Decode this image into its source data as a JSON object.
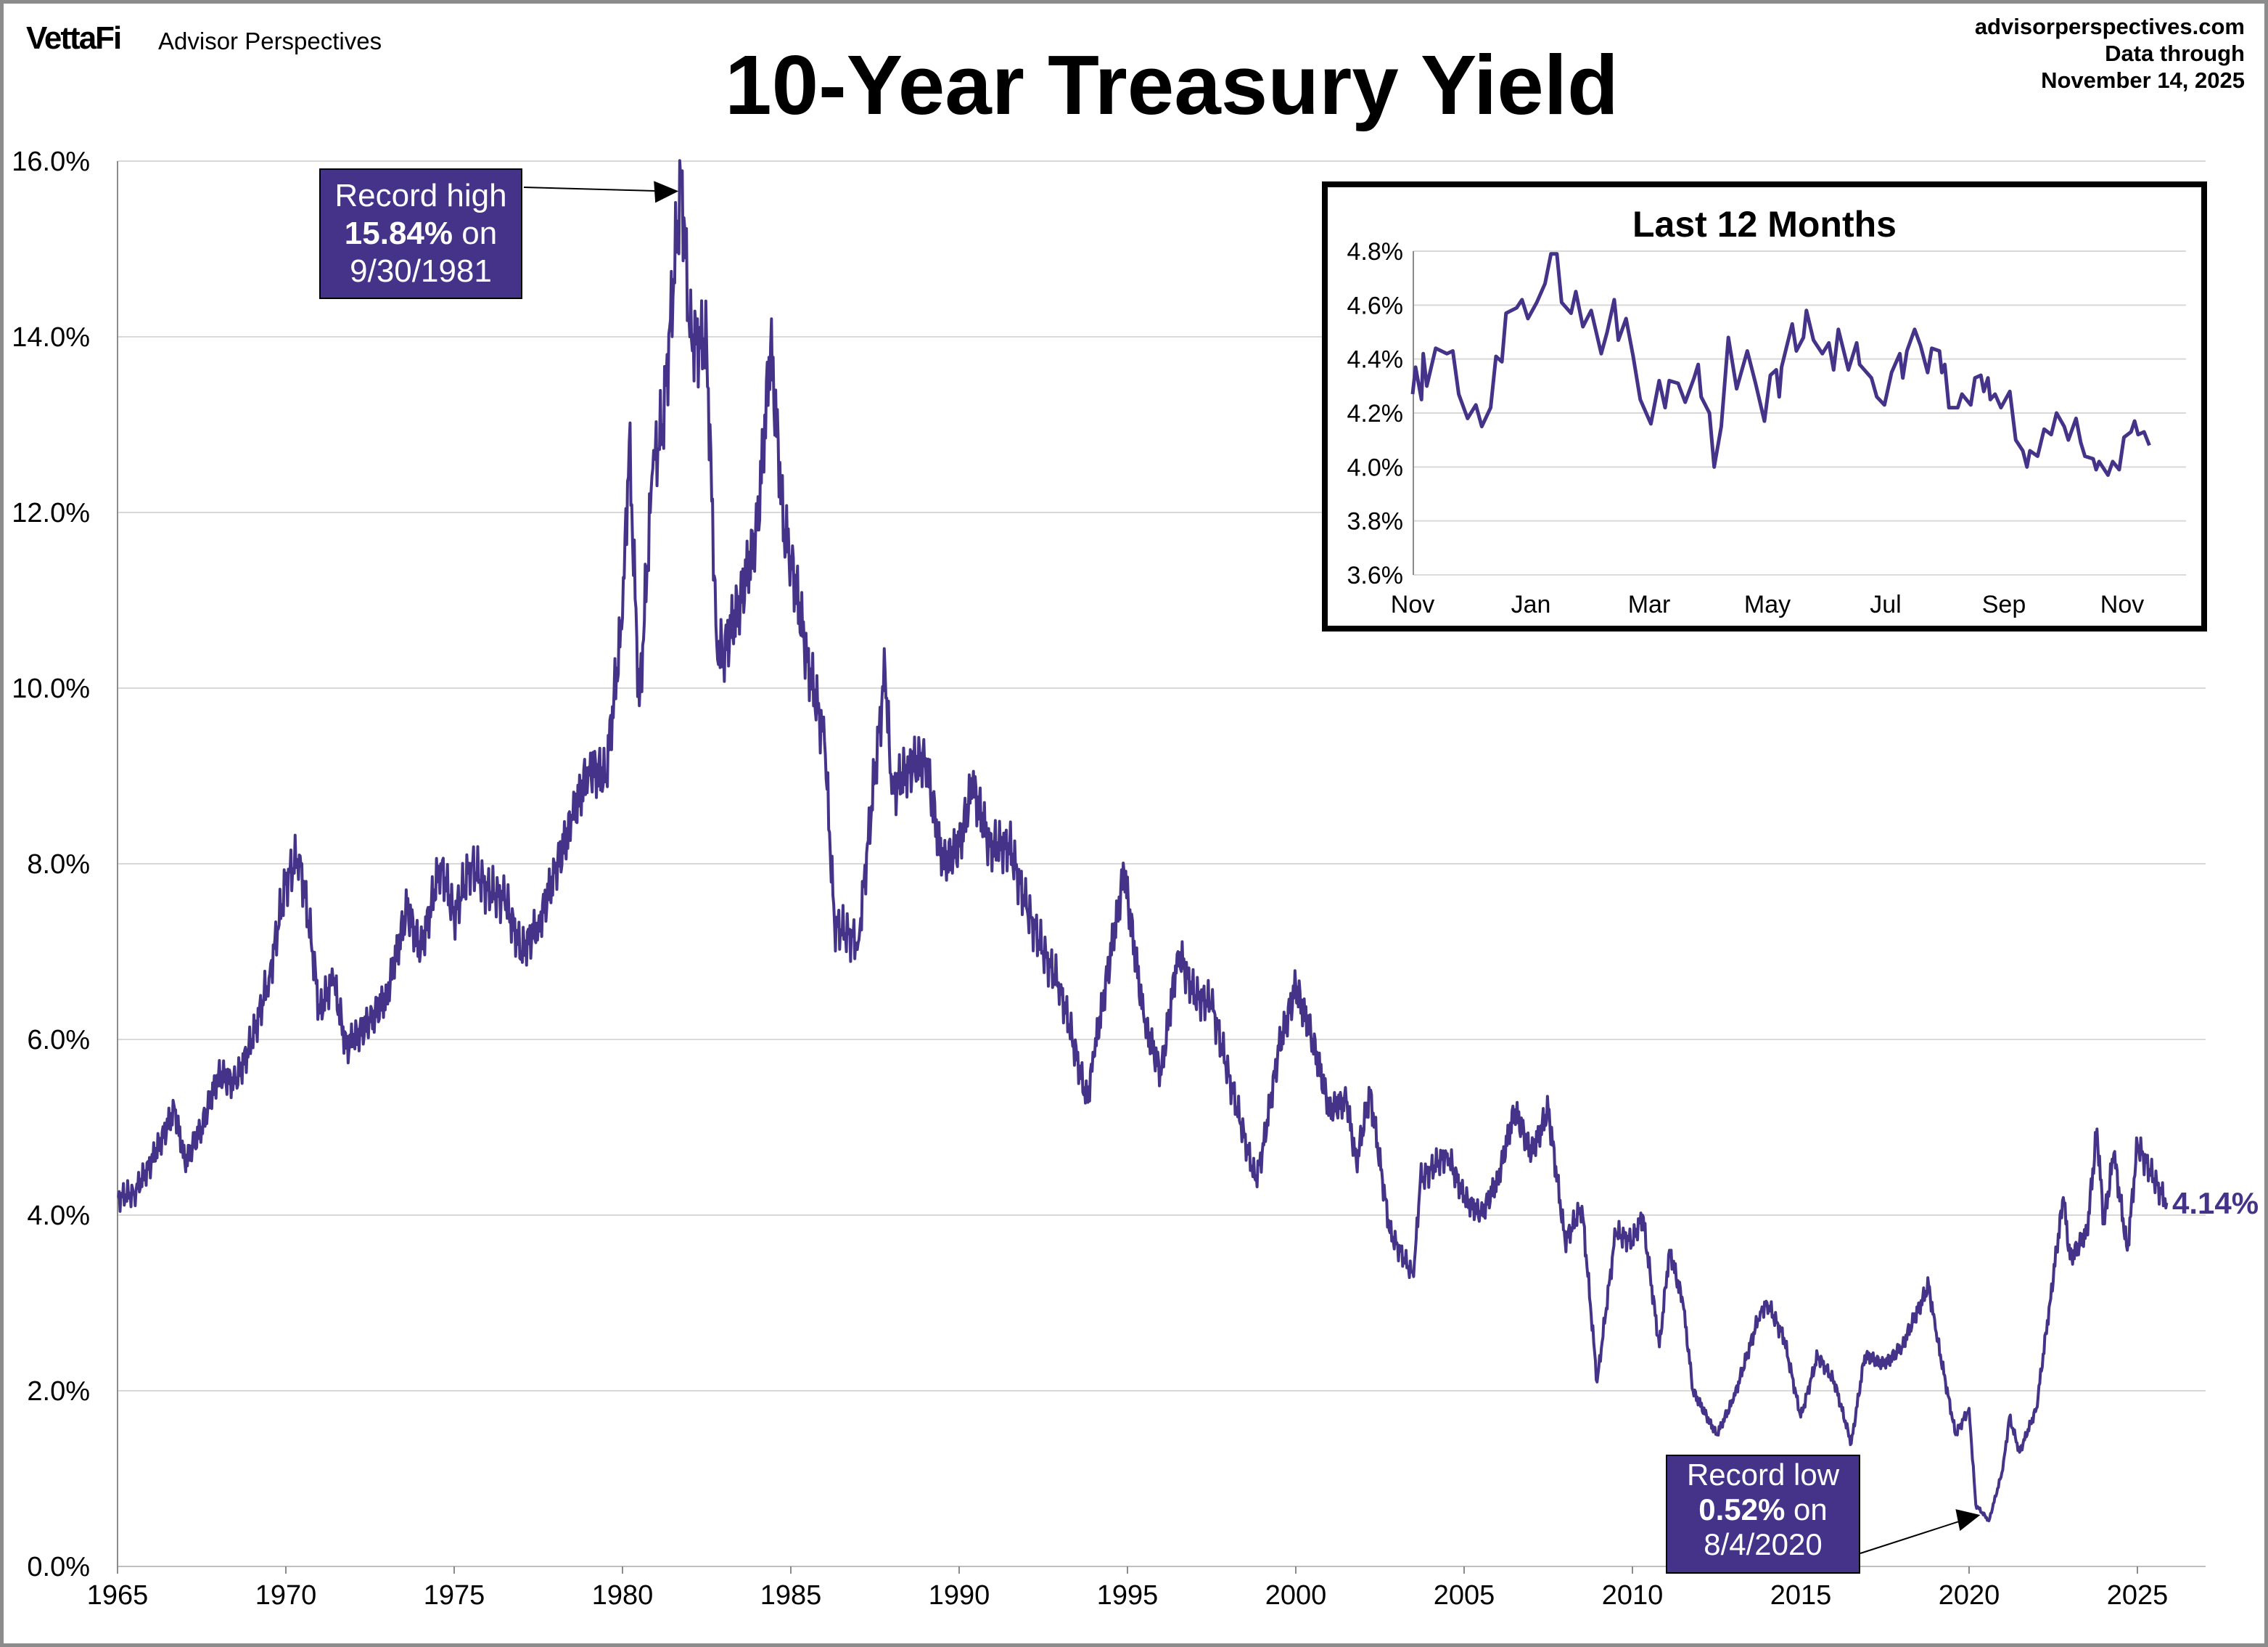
{
  "header": {
    "logo": "VettaFi",
    "brand": "Advisor Perspectives",
    "site": "advisorperspectives.com",
    "data_through_label": "Data through",
    "data_through_date": "November 14, 2025"
  },
  "colors": {
    "line": "#453389",
    "grid": "#d9d9d9",
    "annotation_bg": "#453389"
  },
  "chart_data": [
    {
      "type": "line",
      "title": "10-Year Treasury Yield",
      "xlabel": "",
      "ylabel": "",
      "xlim": [
        1965,
        2026
      ],
      "ylim": [
        0,
        16
      ],
      "grid": true,
      "x_ticks": [
        "1965",
        "1970",
        "1975",
        "1980",
        "1985",
        "1990",
        "1995",
        "2000",
        "2005",
        "2010",
        "2015",
        "2020",
        "2025"
      ],
      "y_ticks": [
        "0.0%",
        "2.0%",
        "4.0%",
        "6.0%",
        "8.0%",
        "10.0%",
        "12.0%",
        "14.0%",
        "16.0%"
      ],
      "current_label": "4.14%",
      "annotations": {
        "high": {
          "line1": "Record high",
          "value": "15.84%",
          "on": " on",
          "date": "9/30/1981",
          "x": 1981.75,
          "y": 15.84
        },
        "low": {
          "line1": "Record low",
          "value": "0.52%",
          "on": " on",
          "date": "8/4/2020",
          "x": 2020.59,
          "y": 0.52
        }
      },
      "series": [
        {
          "x": [
            1965.0,
            1965.5,
            1966.0,
            1966.7,
            1967.0,
            1967.5,
            1968.0,
            1968.5,
            1969.0,
            1969.5,
            1970.0,
            1970.4,
            1970.8,
            1971.0,
            1971.4,
            1971.8,
            1972.0,
            1972.5,
            1973.0,
            1973.6,
            1974.0,
            1974.6,
            1975.0,
            1975.5,
            1976.0,
            1976.5,
            1977.0,
            1977.5,
            1978.0,
            1978.5,
            1979.0,
            1979.5,
            1980.0,
            1980.2,
            1980.5,
            1980.9,
            1981.2,
            1981.75,
            1982.0,
            1982.5,
            1982.8,
            1983.0,
            1983.5,
            1984.0,
            1984.4,
            1984.8,
            1985.0,
            1985.5,
            1986.0,
            1986.3,
            1986.7,
            1987.0,
            1987.8,
            1988.0,
            1988.5,
            1989.0,
            1989.5,
            1990.0,
            1990.4,
            1990.9,
            1991.5,
            1992.0,
            1992.5,
            1993.0,
            1993.8,
            1994.0,
            1994.9,
            1995.5,
            1996.0,
            1996.5,
            1997.0,
            1997.5,
            1998.0,
            1998.8,
            1999.0,
            1999.5,
            2000.0,
            2000.5,
            2001.0,
            2001.5,
            2001.8,
            2002.2,
            2002.8,
            2003.5,
            2003.7,
            2004.5,
            2005.0,
            2005.5,
            2006.0,
            2006.5,
            2007.0,
            2007.5,
            2008.0,
            2008.5,
            2008.95,
            2009.5,
            2010.0,
            2010.3,
            2010.8,
            2011.1,
            2011.5,
            2011.8,
            2012.5,
            2013.0,
            2013.8,
            2014.0,
            2014.5,
            2015.0,
            2015.5,
            2016.0,
            2016.5,
            2016.9,
            2017.5,
            2018.0,
            2018.8,
            2019.0,
            2019.6,
            2020.0,
            2020.2,
            2020.59,
            2021.0,
            2021.2,
            2021.5,
            2022.0,
            2022.4,
            2022.8,
            2023.0,
            2023.5,
            2023.8,
            2024.0,
            2024.3,
            2024.7,
            2025.0,
            2025.5,
            2025.87
          ],
          "y": [
            4.2,
            4.25,
            4.6,
            5.2,
            4.6,
            5.0,
            5.6,
            5.5,
            6.0,
            6.7,
            7.8,
            8.1,
            7.0,
            6.3,
            6.7,
            5.9,
            6.0,
            6.2,
            6.5,
            7.5,
            7.0,
            8.0,
            7.4,
            8.0,
            7.7,
            7.6,
            7.0,
            7.3,
            7.9,
            8.5,
            9.1,
            9.0,
            10.8,
            12.8,
            9.8,
            12.5,
            13.0,
            15.84,
            14.0,
            13.9,
            10.5,
            10.4,
            11.0,
            11.8,
            13.9,
            11.8,
            11.5,
            10.3,
            9.4,
            7.3,
            7.2,
            7.1,
            10.2,
            8.8,
            9.1,
            9.2,
            8.0,
            8.2,
            8.9,
            8.2,
            8.2,
            7.5,
            7.0,
            6.6,
            5.3,
            5.8,
            7.9,
            6.2,
            5.6,
            7.0,
            6.5,
            6.4,
            5.6,
            4.4,
            4.7,
            5.9,
            6.6,
            6.0,
            5.2,
            5.3,
            4.6,
            5.4,
            3.8,
            3.3,
            4.4,
            4.7,
            4.2,
            4.0,
            4.4,
            5.2,
            4.7,
            5.2,
            3.7,
            4.1,
            2.1,
            3.8,
            3.7,
            4.0,
            2.5,
            3.6,
            3.0,
            2.0,
            1.5,
            1.9,
            2.9,
            3.0,
            2.6,
            1.7,
            2.4,
            2.1,
            1.4,
            2.4,
            2.3,
            2.5,
            3.2,
            2.7,
            1.5,
            1.8,
            0.7,
            0.52,
            1.1,
            1.7,
            1.3,
            1.8,
            3.0,
            4.2,
            3.5,
            3.8,
            4.98,
            3.9,
            4.7,
            3.6,
            4.8,
            4.4,
            4.14
          ]
        }
      ]
    },
    {
      "type": "line",
      "title": "Last 12 Months",
      "ylim": [
        3.6,
        4.8
      ],
      "grid": true,
      "x_unit": "months since Nov 2024",
      "x_ticks": [
        "Nov",
        "Jan",
        "Mar",
        "May",
        "Jul",
        "Sep",
        "Nov"
      ],
      "y_ticks": [
        "3.6%",
        "3.8%",
        "4.0%",
        "4.2%",
        "4.4%",
        "4.6%",
        "4.8%"
      ],
      "series": [
        {
          "x": [
            0,
            0.05,
            0.15,
            0.18,
            0.24,
            0.39,
            0.58,
            0.68,
            0.78,
            0.93,
            1.07,
            1.17,
            1.32,
            1.41,
            1.51,
            1.58,
            1.76,
            1.85,
            1.95,
            2.1,
            2.24,
            2.34,
            2.44,
            2.52,
            2.68,
            2.76,
            2.88,
            3.02,
            3.19,
            3.29,
            3.41,
            3.48,
            3.61,
            3.73,
            3.85,
            4.03,
            4.17,
            4.27,
            4.34,
            4.49,
            4.61,
            4.76,
            4.83,
            4.88,
            5.02,
            5.1,
            5.22,
            5.34,
            5.48,
            5.66,
            5.8,
            5.95,
            6.05,
            6.15,
            6.2,
            6.24,
            6.42,
            6.49,
            6.61,
            6.66,
            6.78,
            6.93,
            7.04,
            7.12,
            7.2,
            7.37,
            7.51,
            7.56,
            7.76,
            7.85,
            7.98,
            8.1,
            8.24,
            8.29,
            8.36,
            8.49,
            8.59,
            8.71,
            8.78,
            8.91,
            8.95,
            9.0,
            9.07,
            9.22,
            9.29,
            9.44,
            9.51,
            9.61,
            9.66,
            9.73,
            9.77,
            9.85,
            9.95,
            10.1,
            10.2,
            10.32,
            10.39,
            10.44,
            10.57,
            10.68,
            10.8,
            10.89,
            11.02,
            11.09,
            11.22,
            11.3,
            11.37,
            11.51,
            11.56,
            11.61,
            11.76,
            11.84,
            11.95,
            12.03,
            12.15,
            12.21,
            12.27,
            12.37,
            12.46
          ],
          "y": [
            4.27,
            4.37,
            4.25,
            4.42,
            4.3,
            4.44,
            4.42,
            4.43,
            4.27,
            4.18,
            4.23,
            4.15,
            4.22,
            4.41,
            4.39,
            4.57,
            4.59,
            4.62,
            4.55,
            4.61,
            4.68,
            4.79,
            4.79,
            4.61,
            4.57,
            4.65,
            4.52,
            4.58,
            4.42,
            4.5,
            4.62,
            4.47,
            4.55,
            4.41,
            4.25,
            4.16,
            4.32,
            4.22,
            4.32,
            4.31,
            4.24,
            4.33,
            4.38,
            4.26,
            4.2,
            4.0,
            4.15,
            4.48,
            4.29,
            4.43,
            4.31,
            4.17,
            4.34,
            4.36,
            4.26,
            4.37,
            4.53,
            4.43,
            4.48,
            4.58,
            4.47,
            4.42,
            4.46,
            4.36,
            4.51,
            4.36,
            4.46,
            4.38,
            4.33,
            4.26,
            4.23,
            4.35,
            4.42,
            4.33,
            4.43,
            4.51,
            4.45,
            4.35,
            4.44,
            4.43,
            4.35,
            4.38,
            4.22,
            4.22,
            4.27,
            4.23,
            4.33,
            4.34,
            4.28,
            4.33,
            4.25,
            4.27,
            4.22,
            4.28,
            4.1,
            4.06,
            4.0,
            4.06,
            4.04,
            4.14,
            4.12,
            4.2,
            4.15,
            4.1,
            4.18,
            4.09,
            4.04,
            4.03,
            3.99,
            4.02,
            3.97,
            4.02,
            3.99,
            4.11,
            4.13,
            4.17,
            4.12,
            4.13,
            4.08
          ]
        }
      ]
    }
  ]
}
